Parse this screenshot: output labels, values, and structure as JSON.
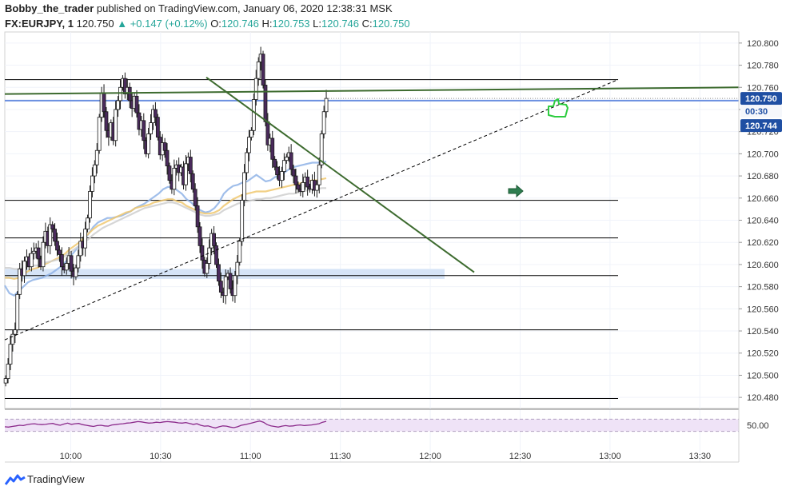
{
  "header": {
    "author": "Bobby_the_trader",
    "published": " published on TradingView.com, January 06, 2020 12:38:31 MSK",
    "symbol": "FX:EURJPY, 1",
    "last": "120.750",
    "change": "▲ +0.147 (+0.12%)",
    "o_label": "O:",
    "o_value": "120.746",
    "h_label": "H:",
    "h_value": "120.753",
    "l_label": "L:",
    "l_value": "120.746",
    "c_label": "C:",
    "c_value": "120.750"
  },
  "footer": {
    "brand": "TradingView",
    "logo_icon": "tradingview-logo-icon"
  },
  "colors": {
    "bull": "#ffffff",
    "bear": "#4a2a5c",
    "ma_blue": "#8fb3e6",
    "ma_yellow": "#f0c870",
    "ma_gray": "#cfcfcf",
    "trend_green": "#3d6b2f",
    "h_blue": "#6a8fe0",
    "zone": "#d6e4f7",
    "rsi_line": "#8b2a8b",
    "rsi_band": "#efe3f7",
    "last_badge": "#1f4fa3"
  },
  "chart_data": {
    "type": "candlestick",
    "symbol": "FX:EURJPY",
    "interval": "1",
    "ylim": [
      120.47,
      120.81
    ],
    "y_ticks": [
      "120.800",
      "120.780",
      "120.760",
      "120.740",
      "120.720",
      "120.700",
      "120.680",
      "120.660",
      "120.640",
      "120.620",
      "120.600",
      "120.580",
      "120.560",
      "120.540",
      "120.520",
      "120.500",
      "120.480"
    ],
    "x_ticks": [
      "10:00",
      "10:30",
      "11:00",
      "11:30",
      "12:00",
      "12:30",
      "13:00",
      "13:30"
    ],
    "x_tick_minutes": [
      600,
      630,
      660,
      690,
      720,
      750,
      780,
      810
    ],
    "x_range_minutes": [
      578,
      823
    ],
    "last_price_label": "120.750",
    "countdown_label": "00:30",
    "second_price_label": "120.744",
    "closes": [
      120.497,
      120.51,
      120.528,
      120.537,
      120.541,
      120.573,
      120.596,
      120.59,
      120.603,
      120.607,
      120.598,
      120.61,
      120.612,
      120.615,
      120.605,
      120.598,
      120.62,
      120.63,
      120.617,
      120.636,
      120.632,
      120.621,
      120.613,
      120.609,
      120.598,
      120.595,
      120.601,
      120.608,
      120.594,
      120.589,
      120.597,
      120.608,
      120.621,
      120.615,
      120.632,
      120.642,
      120.666,
      120.68,
      120.69,
      120.703,
      120.733,
      120.755,
      120.738,
      120.721,
      120.715,
      120.728,
      120.712,
      120.74,
      120.748,
      120.76,
      120.768,
      120.754,
      120.76,
      120.748,
      120.741,
      120.752,
      120.737,
      120.722,
      120.73,
      120.712,
      120.7,
      120.718,
      120.728,
      120.74,
      120.733,
      120.715,
      120.699,
      120.71,
      120.703,
      120.689,
      120.676,
      120.668,
      120.687,
      120.69,
      120.683,
      120.688,
      120.672,
      120.691,
      120.697,
      120.682,
      120.668,
      120.653,
      120.634,
      120.617,
      120.604,
      120.592,
      120.601,
      120.615,
      120.628,
      120.617,
      120.6,
      120.585,
      120.575,
      120.572,
      120.589,
      120.592,
      120.578,
      120.572,
      120.59,
      120.602,
      120.621,
      120.658,
      120.683,
      120.701,
      120.715,
      120.721,
      120.749,
      120.768,
      120.783,
      120.79,
      120.762,
      120.729,
      120.708,
      120.714,
      120.695,
      120.688,
      120.681,
      120.676,
      120.684,
      120.694,
      120.697,
      120.701,
      120.686,
      120.68,
      120.672,
      120.668,
      120.666,
      120.674,
      120.679,
      120.67,
      120.668,
      120.676,
      120.667,
      120.672,
      120.69,
      120.718,
      120.738,
      120.75
    ],
    "moving_averages": [
      {
        "color": "#8fb3e6",
        "values": [
          120.581,
          120.574,
          120.572,
          120.576,
          120.58,
          120.584,
          120.586,
          120.587,
          120.588,
          120.59,
          120.592,
          120.595,
          120.598,
          120.602,
          120.607,
          120.612,
          120.617,
          120.622,
          120.628,
          120.634,
          120.638,
          120.64,
          120.642,
          120.642,
          120.643,
          120.644,
          120.646,
          120.648,
          120.651,
          120.653,
          120.655,
          120.658,
          120.661,
          120.664,
          120.668,
          120.67,
          120.67,
          120.667,
          120.664,
          120.659,
          120.656,
          120.652,
          120.649,
          120.647,
          120.648,
          120.651,
          120.656,
          120.664,
          120.668,
          120.671,
          120.672,
          120.674,
          120.675,
          120.678,
          120.681,
          120.678,
          120.675,
          120.676,
          120.679,
          120.68,
          120.683,
          120.686,
          120.688,
          120.689,
          120.69,
          120.691,
          120.692,
          120.692,
          120.692,
          120.693
        ]
      },
      {
        "color": "#f0c870",
        "values": [
          120.588,
          120.588,
          120.587,
          120.588,
          120.591,
          120.594,
          120.596,
          120.597,
          120.599,
          120.601,
          120.603,
          120.605,
          120.607,
          120.61,
          120.614,
          120.617,
          120.62,
          120.624,
          120.628,
          120.632,
          120.635,
          120.637,
          120.639,
          120.641,
          120.643,
          120.645,
          120.647,
          120.648,
          120.651,
          120.652,
          120.653,
          120.654,
          120.656,
          120.657,
          120.658,
          120.659,
          120.659,
          120.657,
          120.656,
          120.653,
          120.651,
          120.649,
          120.647,
          120.646,
          120.646,
          120.647,
          120.649,
          120.653,
          120.656,
          120.659,
          120.661,
          120.663,
          120.664,
          120.665,
          120.666,
          120.666,
          120.666,
          120.667,
          120.668,
          120.669,
          120.67,
          120.671,
          120.672,
          120.673,
          120.674,
          120.675,
          120.676,
          120.676,
          120.677,
          120.678
        ]
      },
      {
        "color": "#cfcfcf",
        "values": [
          120.597,
          120.597,
          120.596,
          120.596,
          120.597,
          120.598,
          120.599,
          120.599,
          120.601,
          120.602,
          120.603,
          120.604,
          120.605,
          120.608,
          120.611,
          120.614,
          120.617,
          120.62,
          120.623,
          120.627,
          120.63,
          120.633,
          120.635,
          120.637,
          120.639,
          120.641,
          120.643,
          120.645,
          120.647,
          120.649,
          120.651,
          120.652,
          120.653,
          120.654,
          120.655,
          120.656,
          120.656,
          120.655,
          120.653,
          120.651,
          120.649,
          120.647,
          120.645,
          120.644,
          120.644,
          120.645,
          120.646,
          120.649,
          120.651,
          120.653,
          120.655,
          120.656,
          120.657,
          120.658,
          120.659,
          120.659,
          120.66,
          120.66,
          120.661,
          120.662,
          120.663,
          120.664,
          120.664,
          120.665,
          120.666,
          120.667,
          120.668,
          120.668,
          120.669,
          120.669
        ]
      }
    ],
    "horizontal_levels": [
      120.767,
      120.658,
      120.624,
      120.59,
      120.541,
      120.479
    ],
    "blue_level": 120.748,
    "demand_zone": [
      120.587,
      120.596
    ],
    "trendlines": [
      "descending",
      "ascending-dashed",
      "flat-green"
    ],
    "rsi": {
      "label": "50.00",
      "values": [
        45,
        44,
        46,
        48,
        50,
        49,
        52,
        54,
        55,
        53,
        52,
        53,
        55,
        56,
        52,
        50,
        54,
        57,
        53,
        55,
        56,
        52,
        50,
        48,
        46,
        49,
        50,
        48,
        47,
        51,
        52,
        54,
        55,
        57,
        58,
        60,
        62,
        61,
        59,
        57,
        58,
        60,
        59,
        61,
        62,
        61,
        60,
        58,
        57,
        59,
        56,
        53,
        55,
        50,
        47,
        48,
        44,
        41,
        45,
        48,
        47,
        44,
        42,
        45,
        50,
        52,
        55,
        58,
        61,
        64,
        60,
        52,
        48,
        46,
        44,
        47,
        49,
        47,
        48,
        50,
        51,
        49,
        50,
        51,
        53,
        55,
        60,
        63
      ],
      "levels": [
        70,
        30
      ]
    }
  }
}
